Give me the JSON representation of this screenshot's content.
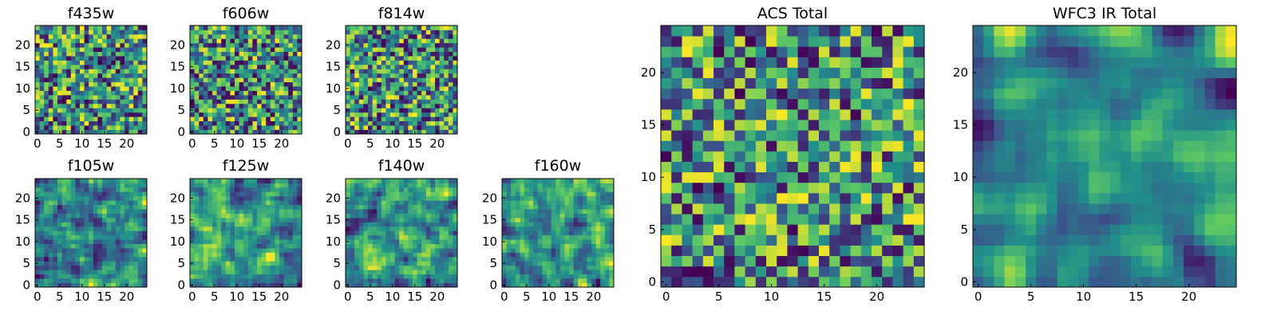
{
  "chart_data": [
    {
      "id": "f435w",
      "type": "heatmap",
      "title": "f435w",
      "size": 25,
      "seed": 11,
      "smooth": 0,
      "xticks": [
        0,
        5,
        10,
        15,
        20
      ],
      "yticks": [
        0,
        5,
        10,
        15,
        20
      ],
      "xlim": [
        0,
        24
      ],
      "ylim": [
        0,
        24
      ]
    },
    {
      "id": "f606w",
      "type": "heatmap",
      "title": "f606w",
      "size": 25,
      "seed": 23,
      "smooth": 0,
      "xticks": [
        0,
        5,
        10,
        15,
        20
      ],
      "yticks": [
        0,
        5,
        10,
        15,
        20
      ],
      "xlim": [
        0,
        24
      ],
      "ylim": [
        0,
        24
      ]
    },
    {
      "id": "f814w",
      "type": "heatmap",
      "title": "f814w",
      "size": 25,
      "seed": 37,
      "smooth": 0,
      "xticks": [
        0,
        5,
        10,
        15,
        20
      ],
      "yticks": [
        0,
        5,
        10,
        15,
        20
      ],
      "xlim": [
        0,
        24
      ],
      "ylim": [
        0,
        24
      ]
    },
    {
      "id": "f105w",
      "type": "heatmap",
      "title": "f105w",
      "size": 25,
      "seed": 41,
      "smooth": 1,
      "xticks": [
        0,
        5,
        10,
        15,
        20
      ],
      "yticks": [
        0,
        5,
        10,
        15,
        20
      ],
      "xlim": [
        0,
        24
      ],
      "ylim": [
        0,
        24
      ]
    },
    {
      "id": "f125w",
      "type": "heatmap",
      "title": "f125w",
      "size": 25,
      "seed": 53,
      "smooth": 1,
      "xticks": [
        0,
        5,
        10,
        15,
        20
      ],
      "yticks": [
        0,
        5,
        10,
        15,
        20
      ],
      "xlim": [
        0,
        24
      ],
      "ylim": [
        0,
        24
      ]
    },
    {
      "id": "f140w",
      "type": "heatmap",
      "title": "f140w",
      "size": 25,
      "seed": 67,
      "smooth": 1,
      "xticks": [
        0,
        5,
        10,
        15,
        20
      ],
      "yticks": [
        0,
        5,
        10,
        15,
        20
      ],
      "xlim": [
        0,
        24
      ],
      "ylim": [
        0,
        24
      ]
    },
    {
      "id": "f160w",
      "type": "heatmap",
      "title": "f160w",
      "size": 25,
      "seed": 79,
      "smooth": 1,
      "xticks": [
        0,
        5,
        10,
        15,
        20
      ],
      "yticks": [
        0,
        5,
        10,
        15,
        20
      ],
      "xlim": [
        0,
        24
      ],
      "ylim": [
        0,
        24
      ]
    },
    {
      "id": "acs-total",
      "type": "heatmap",
      "title": "ACS Total",
      "size": 25,
      "seed": 97,
      "smooth": 0,
      "xticks": [
        0,
        5,
        10,
        15,
        20
      ],
      "yticks": [
        0,
        5,
        10,
        15,
        20
      ],
      "xlim": [
        0,
        24
      ],
      "ylim": [
        0,
        24
      ]
    },
    {
      "id": "wfc3-ir-total",
      "type": "heatmap",
      "title": "WFC3 IR Total",
      "size": 25,
      "seed": 113,
      "smooth": 2,
      "xticks": [
        0,
        5,
        10,
        15,
        20
      ],
      "yticks": [
        0,
        5,
        10,
        15,
        20
      ],
      "xlim": [
        0,
        24
      ],
      "ylim": [
        0,
        24
      ]
    }
  ],
  "colormap": [
    "#440154",
    "#3b528b",
    "#21918c",
    "#5ec962",
    "#fde725"
  ]
}
